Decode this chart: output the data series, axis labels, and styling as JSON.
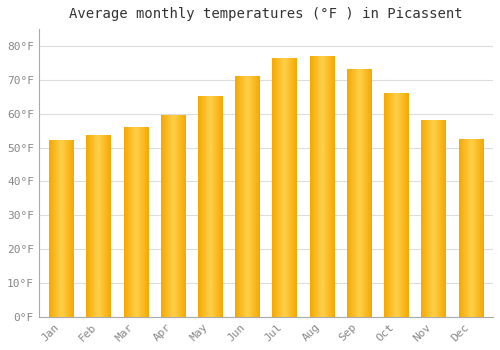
{
  "title": "Average monthly temperatures (°F ) in Picassent",
  "months": [
    "Jan",
    "Feb",
    "Mar",
    "Apr",
    "May",
    "Jun",
    "Jul",
    "Aug",
    "Sep",
    "Oct",
    "Nov",
    "Dec"
  ],
  "values": [
    52,
    53.5,
    56,
    59.5,
    65,
    71,
    76.5,
    77,
    73,
    66,
    58,
    52.5
  ],
  "bar_color_center": "#FFD04A",
  "bar_color_edge": "#F5A800",
  "background_color": "#ffffff",
  "plot_area_color": "#ffffff",
  "grid_color": "#dddddd",
  "yticks": [
    0,
    10,
    20,
    30,
    40,
    50,
    60,
    70,
    80
  ],
  "ytick_labels": [
    "0°F",
    "10°F",
    "20°F",
    "30°F",
    "40°F",
    "50°F",
    "60°F",
    "70°F",
    "80°F"
  ],
  "ylim": [
    0,
    85
  ],
  "title_fontsize": 10,
  "tick_fontsize": 8,
  "tick_color": "#888888",
  "title_color": "#333333",
  "bar_width": 0.65
}
